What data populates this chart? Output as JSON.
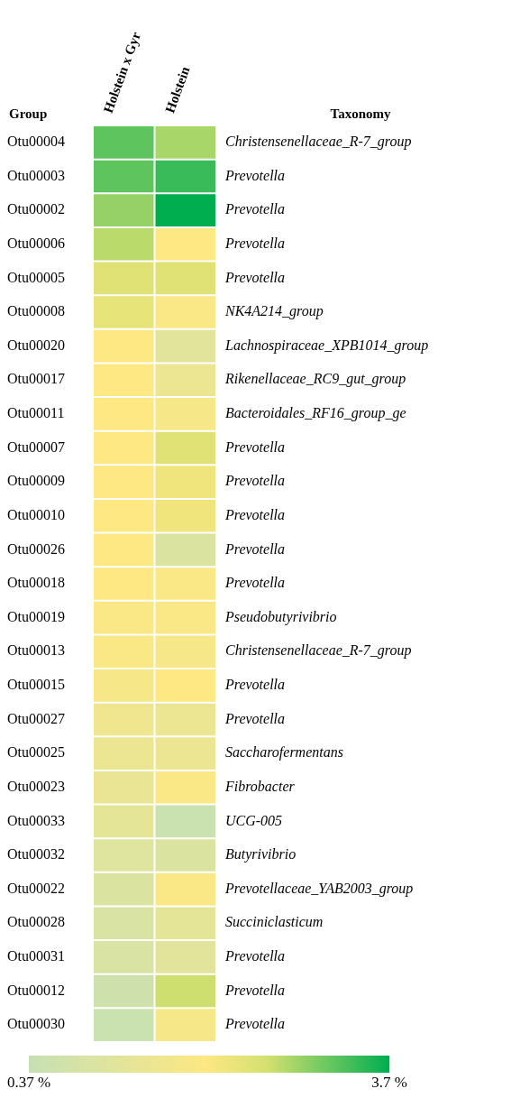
{
  "chart_data": {
    "type": "heatmap",
    "ylabel": "Group",
    "annotations": [
      "Taxonomy"
    ],
    "categories": [
      "Holstein x Gyr",
      "Holstein"
    ],
    "y_categories": [
      "Otu00004",
      "Otu00003",
      "Otu00002",
      "Otu00006",
      "Otu00005",
      "Otu00008",
      "Otu00020",
      "Otu00017",
      "Otu00011",
      "Otu00007",
      "Otu00009",
      "Otu00010",
      "Otu00026",
      "Otu00018",
      "Otu00019",
      "Otu00013",
      "Otu00015",
      "Otu00027",
      "Otu00025",
      "Otu00023",
      "Otu00033",
      "Otu00032",
      "Otu00022",
      "Otu00028",
      "Otu00031",
      "Otu00012",
      "Otu00030"
    ],
    "y2_categories": [
      "Christensenellaceae_R-7_group",
      "Prevotella",
      "Prevotella",
      "Prevotella",
      "Prevotella",
      "NK4A214_group",
      "Lachnospiraceae_XPB1014_group",
      "Rikenellaceae_RC9_gut_group",
      "Bacteroidales_RF16_group_ge",
      "Prevotella",
      "Prevotella",
      "Prevotella",
      "Prevotella",
      "Prevotella",
      "Pseudobutyrivibrio",
      "Christensenellaceae_R-7_group",
      "Prevotella",
      "Prevotella",
      "Saccharofermentans",
      "Fibrobacter",
      "UCG-005",
      "Butyrivibrio",
      "Prevotellaceae_YAB2003_group",
      "Succiniclasticum",
      "Prevotella",
      "Prevotella",
      "Prevotella"
    ],
    "cells": [
      [
        3.2,
        2.8
      ],
      [
        3.2,
        3.4
      ],
      [
        2.9,
        3.7
      ],
      [
        2.7,
        2.0
      ],
      [
        2.4,
        2.4
      ],
      [
        2.3,
        1.9
      ],
      [
        2.0,
        1.2
      ],
      [
        2.0,
        1.5
      ],
      [
        2.0,
        1.8
      ],
      [
        2.0,
        2.4
      ],
      [
        2.0,
        2.2
      ],
      [
        2.0,
        2.2
      ],
      [
        2.0,
        1.0
      ],
      [
        2.0,
        1.9
      ],
      [
        1.9,
        1.9
      ],
      [
        1.9,
        1.8
      ],
      [
        1.8,
        2.0
      ],
      [
        1.6,
        1.5
      ],
      [
        1.5,
        1.5
      ],
      [
        1.4,
        1.9
      ],
      [
        1.3,
        0.5
      ],
      [
        1.1,
        1.0
      ],
      [
        1.0,
        1.9
      ],
      [
        0.9,
        1.3
      ],
      [
        0.9,
        1.2
      ],
      [
        0.6,
        2.6
      ],
      [
        0.5,
        1.8
      ]
    ],
    "clim": [
      0.37,
      3.7
    ],
    "cticks": [
      {
        "value": 0.37,
        "label": "0.37 %"
      },
      {
        "value": 3.7,
        "label": "3.7 %"
      }
    ]
  }
}
